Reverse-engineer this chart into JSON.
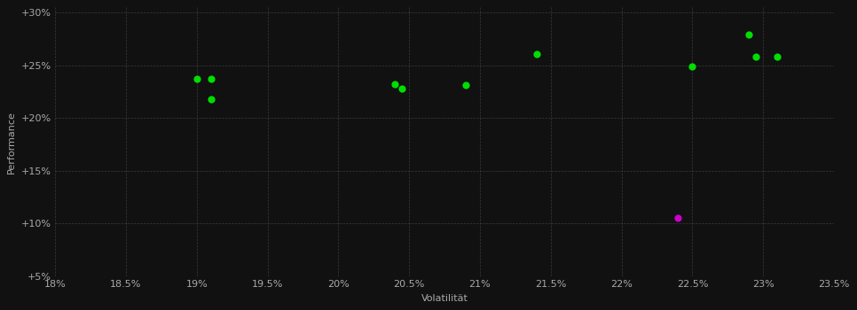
{
  "xlabel": "Volatilität",
  "ylabel": "Performance",
  "background_color": "#111111",
  "grid_color": "#444444",
  "text_color": "#aaaaaa",
  "xlim": [
    0.18,
    0.235
  ],
  "ylim": [
    0.05,
    0.305
  ],
  "xticks": [
    0.18,
    0.185,
    0.19,
    0.195,
    0.2,
    0.205,
    0.21,
    0.215,
    0.22,
    0.225,
    0.23,
    0.235
  ],
  "yticks": [
    0.05,
    0.1,
    0.15,
    0.2,
    0.25,
    0.3
  ],
  "green_points": [
    [
      0.19,
      0.237
    ],
    [
      0.191,
      0.237
    ],
    [
      0.191,
      0.218
    ],
    [
      0.204,
      0.232
    ],
    [
      0.2045,
      0.228
    ],
    [
      0.209,
      0.231
    ],
    [
      0.214,
      0.261
    ],
    [
      0.225,
      0.249
    ],
    [
      0.229,
      0.279
    ],
    [
      0.2295,
      0.258
    ],
    [
      0.231,
      0.258
    ]
  ],
  "magenta_points": [
    [
      0.224,
      0.105
    ]
  ],
  "point_size": 35,
  "green_color": "#00dd00",
  "magenta_color": "#cc00cc",
  "font_size_axis_label": 8,
  "font_size_tick": 8
}
